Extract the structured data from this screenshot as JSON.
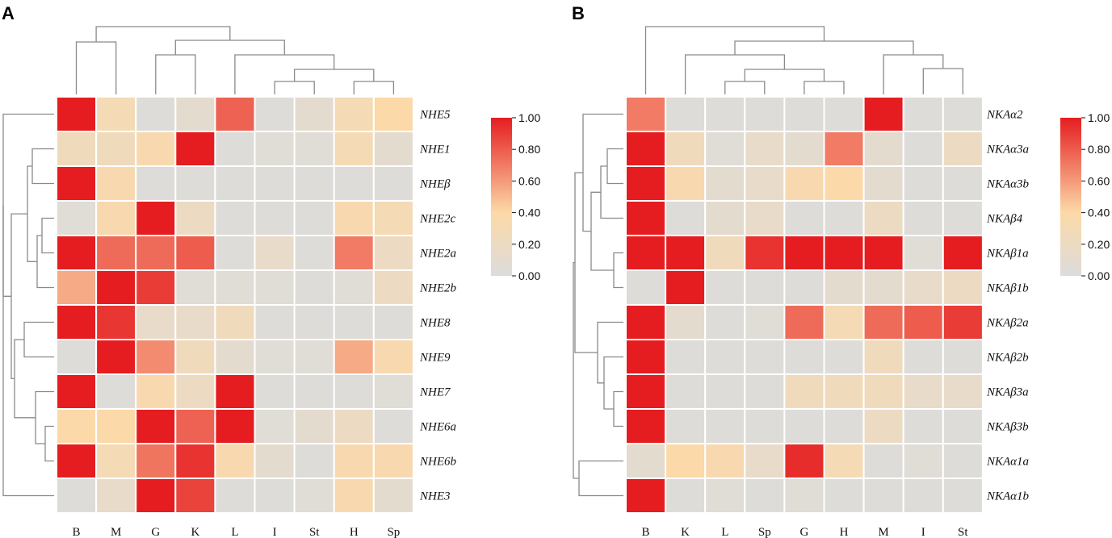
{
  "chart_data": [
    {
      "type": "heatmap",
      "panel": "A",
      "columns": [
        "B",
        "M",
        "G",
        "K",
        "L",
        "I",
        "St",
        "H",
        "Sp"
      ],
      "rows": [
        "NHE5",
        "NHE1",
        "NHEβ",
        "NHE2c",
        "NHE2a",
        "NHE2b",
        "NHE8",
        "NHE9",
        "NHE7",
        "NHE6a",
        "NHE6b",
        "NHE3"
      ],
      "values": [
        [
          1.0,
          0.3,
          0.03,
          0.1,
          0.78,
          0.02,
          0.1,
          0.3,
          0.4
        ],
        [
          0.25,
          0.25,
          0.35,
          1.0,
          0.02,
          0.05,
          0.05,
          0.3,
          0.1
        ],
        [
          1.0,
          0.35,
          0.02,
          0.02,
          0.02,
          0.02,
          0.02,
          0.02,
          0.02
        ],
        [
          0.05,
          0.35,
          1.0,
          0.2,
          0.02,
          0.02,
          0.02,
          0.35,
          0.3
        ],
        [
          1.0,
          0.75,
          0.75,
          0.8,
          0.02,
          0.15,
          0.02,
          0.7,
          0.2
        ],
        [
          0.55,
          1.0,
          0.9,
          0.05,
          0.05,
          0.05,
          0.02,
          0.05,
          0.2
        ],
        [
          1.0,
          0.92,
          0.15,
          0.15,
          0.25,
          0.02,
          0.02,
          0.02,
          0.02
        ],
        [
          0.02,
          1.0,
          0.65,
          0.25,
          0.1,
          0.05,
          0.05,
          0.55,
          0.35
        ],
        [
          1.0,
          0.02,
          0.35,
          0.2,
          1.0,
          0.02,
          0.02,
          0.02,
          0.05
        ],
        [
          0.4,
          0.4,
          1.0,
          0.78,
          1.0,
          0.05,
          0.1,
          0.2,
          0.02
        ],
        [
          1.0,
          0.3,
          0.72,
          0.93,
          0.35,
          0.1,
          0.02,
          0.35,
          0.35
        ],
        [
          0.02,
          0.15,
          1.0,
          0.88,
          0.02,
          0.02,
          0.05,
          0.35,
          0.1
        ]
      ],
      "colorbar": {
        "min": 0.0,
        "max": 1.0,
        "ticks": [
          "1.00",
          "0.80",
          "0.60",
          "0.40",
          "0.20",
          "0.00"
        ]
      },
      "dendrograms": {
        "columns": true,
        "rows": true
      }
    },
    {
      "type": "heatmap",
      "panel": "B",
      "columns": [
        "B",
        "K",
        "L",
        "Sp",
        "G",
        "H",
        "M",
        "I",
        "St"
      ],
      "rows": [
        "NKAα2",
        "NKAα3a",
        "NKAα3b",
        "NKAβ4",
        "NKAβ1a",
        "NKAβ1b",
        "NKAβ2a",
        "NKAβ2b",
        "NKAβ3a",
        "NKAβ3b",
        "NKAα1a",
        "NKAα1b"
      ],
      "values": [
        [
          0.7,
          0.02,
          0.02,
          0.02,
          0.02,
          0.02,
          1.0,
          0.02,
          0.02
        ],
        [
          1.0,
          0.25,
          0.05,
          0.15,
          0.1,
          0.7,
          0.1,
          0.02,
          0.2
        ],
        [
          1.0,
          0.35,
          0.1,
          0.15,
          0.35,
          0.4,
          0.1,
          0.02,
          0.02
        ],
        [
          1.0,
          0.02,
          0.1,
          0.15,
          0.02,
          0.02,
          0.2,
          0.02,
          0.02
        ],
        [
          1.0,
          1.0,
          0.25,
          0.93,
          1.0,
          1.0,
          1.0,
          0.05,
          1.0
        ],
        [
          0.02,
          1.0,
          0.02,
          0.02,
          0.02,
          0.1,
          0.1,
          0.15,
          0.2
        ],
        [
          1.0,
          0.1,
          0.02,
          0.05,
          0.75,
          0.3,
          0.75,
          0.8,
          0.9
        ],
        [
          1.0,
          0.02,
          0.02,
          0.02,
          0.02,
          0.02,
          0.25,
          0.02,
          0.02
        ],
        [
          1.0,
          0.02,
          0.02,
          0.02,
          0.25,
          0.25,
          0.25,
          0.15,
          0.15
        ],
        [
          1.0,
          0.02,
          0.02,
          0.02,
          0.02,
          0.02,
          0.2,
          0.02,
          0.02
        ],
        [
          0.1,
          0.4,
          0.35,
          0.15,
          0.95,
          0.3,
          0.02,
          0.05,
          0.02
        ],
        [
          1.0,
          0.02,
          0.05,
          0.02,
          0.05,
          0.02,
          0.02,
          0.02,
          0.02
        ]
      ],
      "colorbar": {
        "min": 0.0,
        "max": 1.0,
        "ticks": [
          "1.00",
          "0.80",
          "0.60",
          "0.40",
          "0.20",
          "0.00"
        ]
      },
      "dendrograms": {
        "columns": true,
        "rows": true
      }
    }
  ],
  "colors": {
    "low": "#dcdcdc",
    "mid": "#fcd9a8",
    "high": "#e51d20",
    "dendrogram": "#8a8a8a",
    "grid": "#ffffff"
  }
}
